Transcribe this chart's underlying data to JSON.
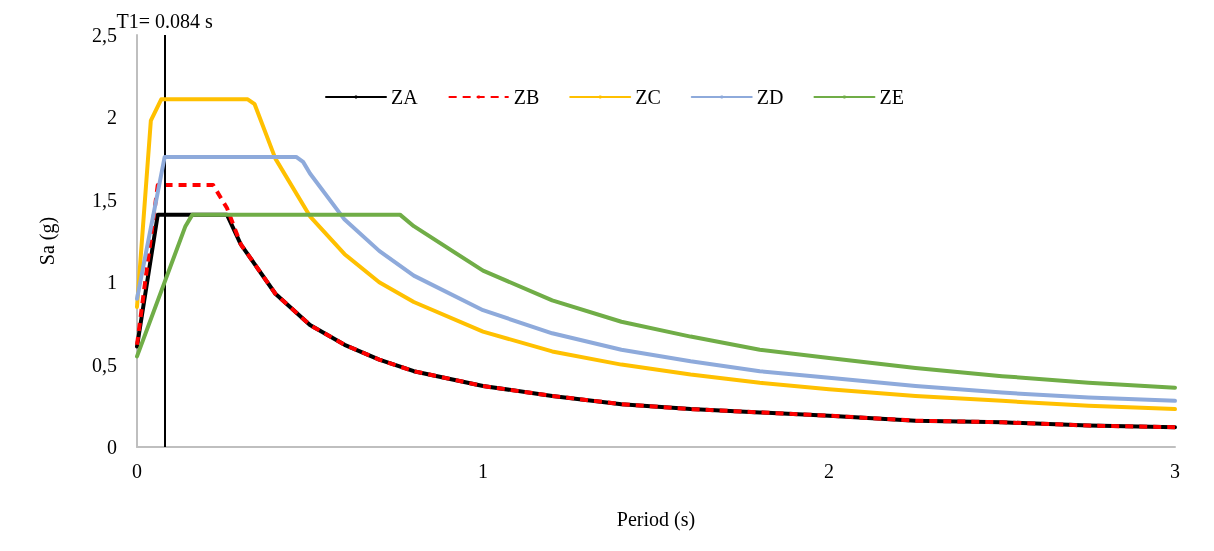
{
  "chart_data": {
    "type": "line",
    "xlabel": "Period (s)",
    "ylabel": "Sa (g)",
    "xlim": [
      0,
      3
    ],
    "xticks": [
      0,
      1,
      2,
      3
    ],
    "ylim": [
      0,
      2.5
    ],
    "yticks": [
      {
        "value": 0,
        "label": "0"
      },
      {
        "value": 0.5,
        "label": "0,5"
      },
      {
        "value": 1,
        "label": "1"
      },
      {
        "value": 1.5,
        "label": "1,5"
      },
      {
        "value": 2,
        "label": "2"
      },
      {
        "value": 2.5,
        "label": "2,5"
      }
    ],
    "grid": false,
    "legend": "top",
    "marker": "none",
    "series": [
      {
        "name": "ZA",
        "color": "#000000",
        "line_style": "solid",
        "x": [
          0,
          0.06,
          0.26,
          0.3,
          0.4,
          0.5,
          0.6,
          0.7,
          0.8,
          1.0,
          1.2,
          1.4,
          1.6,
          1.8,
          2.0,
          2.25,
          2.5,
          2.75,
          3.0
        ],
        "values": [
          0.61,
          1.41,
          1.41,
          1.23,
          0.93,
          0.74,
          0.62,
          0.53,
          0.46,
          0.37,
          0.31,
          0.26,
          0.23,
          0.21,
          0.19,
          0.16,
          0.15,
          0.13,
          0.12
        ]
      },
      {
        "name": "ZB",
        "color": "#ff0000",
        "line_style": "dashed",
        "x": [
          0,
          0.06,
          0.22,
          0.26,
          0.3,
          0.4,
          0.5,
          0.6,
          0.7,
          0.8,
          1.0,
          1.2,
          1.4,
          1.6,
          1.8,
          2.0,
          2.25,
          2.5,
          2.75,
          3.0
        ],
        "values": [
          0.62,
          1.59,
          1.59,
          1.45,
          1.23,
          0.93,
          0.74,
          0.62,
          0.53,
          0.46,
          0.37,
          0.31,
          0.26,
          0.23,
          0.21,
          0.19,
          0.16,
          0.15,
          0.13,
          0.12
        ]
      },
      {
        "name": "ZC",
        "color": "#ffc000",
        "line_style": "solid",
        "x": [
          0,
          0.04,
          0.07,
          0.32,
          0.34,
          0.4,
          0.5,
          0.6,
          0.7,
          0.8,
          1.0,
          1.2,
          1.4,
          1.6,
          1.8,
          2.0,
          2.25,
          2.5,
          2.75,
          3.0
        ],
        "values": [
          0.85,
          1.98,
          2.11,
          2.11,
          2.08,
          1.75,
          1.4,
          1.17,
          1.0,
          0.88,
          0.7,
          0.58,
          0.5,
          0.44,
          0.39,
          0.35,
          0.31,
          0.28,
          0.25,
          0.23
        ]
      },
      {
        "name": "ZD",
        "color": "#8eaadb",
        "line_style": "solid",
        "x": [
          0,
          0.08,
          0.46,
          0.48,
          0.5,
          0.6,
          0.7,
          0.8,
          1.0,
          1.2,
          1.4,
          1.6,
          1.8,
          2.0,
          2.25,
          2.5,
          2.75,
          3.0
        ],
        "values": [
          0.9,
          1.76,
          1.76,
          1.73,
          1.66,
          1.38,
          1.19,
          1.04,
          0.83,
          0.69,
          0.59,
          0.52,
          0.46,
          0.42,
          0.37,
          0.33,
          0.3,
          0.28
        ]
      },
      {
        "name": "ZE",
        "color": "#70ad47",
        "line_style": "solid",
        "x": [
          0,
          0.14,
          0.16,
          0.76,
          0.8,
          1.0,
          1.2,
          1.4,
          1.6,
          1.8,
          2.0,
          2.25,
          2.5,
          2.75,
          3.0
        ],
        "values": [
          0.55,
          1.34,
          1.41,
          1.41,
          1.34,
          1.07,
          0.89,
          0.76,
          0.67,
          0.59,
          0.54,
          0.48,
          0.43,
          0.39,
          0.36
        ]
      }
    ],
    "ref_lines": [
      {
        "axis": "x",
        "value": 0.084,
        "label": "T1= 0.084 s",
        "color": "#000000",
        "line_style": "solid"
      }
    ]
  }
}
